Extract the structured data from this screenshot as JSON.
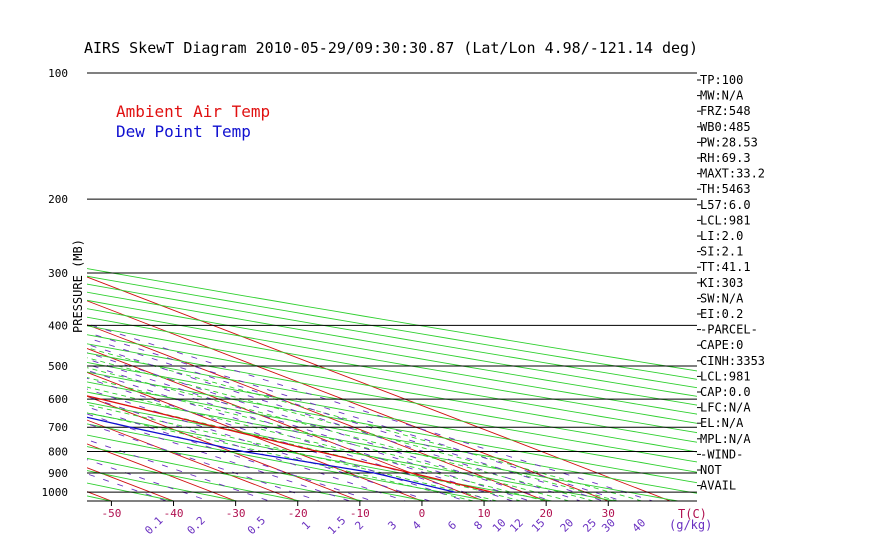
{
  "chart_data": {
    "type": "line",
    "title": "AIRS SkewT Diagram 2010-05-29/09:30:30.87 (Lat/Lon 4.98/-121.14 deg)",
    "ylabel": "PRESSURE (MB)",
    "x_unit_label": "T(C)",
    "mixing_ratio_unit_label": "(g/kg)",
    "y_scale": "log",
    "ylim": [
      1050,
      100
    ],
    "bottom_temp_range": [
      -52,
      24
    ],
    "pressure_ticks": [
      100,
      200,
      300,
      400,
      500,
      600,
      700,
      800,
      900,
      1000
    ],
    "bottom_temp_ticks": [
      -50,
      -40,
      -30,
      -20,
      -10,
      0,
      10,
      20,
      30
    ],
    "top_temp_ticks": [
      -120,
      -110,
      -100,
      -90,
      -80,
      -70,
      -60,
      -50,
      -40
    ],
    "mixing_ratio_labels": [
      "0.1",
      "0.2",
      "0.5",
      "1",
      "1.5",
      "2",
      "3",
      "4",
      "6",
      "8",
      "10",
      "12",
      "15",
      "20",
      "25",
      "30",
      "40"
    ],
    "mixing_ratio_values": [
      0.1,
      0.2,
      0.5,
      1,
      1.5,
      2,
      3,
      4,
      6,
      8,
      10,
      12,
      15,
      20,
      25,
      30,
      40
    ],
    "dry_adiabats_theta_K": [
      200,
      210,
      220,
      230,
      240,
      250,
      260,
      270,
      280,
      290,
      300,
      310,
      320,
      330,
      340,
      350,
      360,
      370,
      380,
      390,
      400,
      410,
      420,
      430,
      440,
      450
    ],
    "moist_adiabats_thetaw_C": [
      6,
      10,
      14,
      18,
      22,
      26,
      30,
      34
    ],
    "legend": [
      {
        "label": "Ambient Air Temp",
        "color": "#e01010"
      },
      {
        "label": "Dew Point Temp",
        "color": "#1010d0"
      }
    ],
    "series": [
      {
        "name": "Ambient Air Temp",
        "color": "#e01010",
        "points": [
          [
            100,
            -83
          ],
          [
            140,
            -80
          ],
          [
            160,
            -78
          ],
          [
            200,
            -68
          ],
          [
            250,
            -56
          ],
          [
            300,
            -46
          ],
          [
            400,
            -30
          ],
          [
            500,
            -18
          ],
          [
            600,
            -9
          ],
          [
            700,
            -2
          ],
          [
            800,
            4
          ],
          [
            900,
            10
          ],
          [
            1000,
            15
          ]
        ]
      },
      {
        "name": "Dew Point Temp",
        "color": "#1010d0",
        "points": [
          [
            100,
            -90
          ],
          [
            150,
            -88
          ],
          [
            200,
            -84
          ],
          [
            250,
            -74
          ],
          [
            300,
            -63
          ],
          [
            400,
            -46
          ],
          [
            500,
            -34
          ],
          [
            600,
            -24
          ],
          [
            700,
            -16
          ],
          [
            800,
            -8
          ],
          [
            900,
            4
          ],
          [
            1000,
            9
          ]
        ]
      }
    ],
    "indices": [
      "TP:100",
      "MW:N/A",
      "FRZ:548",
      "WB0:485",
      "PW:28.53",
      "RH:69.3",
      "MAXT:33.2",
      "TH:5463",
      "L57:6.0",
      "LCL:981",
      "LI:2.0",
      "SI:2.1",
      "TT:41.1",
      "KI:303",
      "SW:N/A",
      "EI:0.2",
      "-PARCEL-",
      "CAPE:0",
      "CINH:3353",
      "LCL:981",
      "CAP:0.0",
      "LFC:N/A",
      "EL:N/A",
      "MPL:N/A",
      "-WIND-",
      "NOT",
      "AVAIL"
    ]
  },
  "colors": {
    "isotherm": "#d01010",
    "dry_adiabat": "#30d030",
    "moist_adiabat": "#30d030",
    "mixing_ratio": "#6a30c0",
    "isobar": "#000000",
    "text": "#000000",
    "bottom_tick_label": "#b01050",
    "mixing_label": "#6a30c0"
  }
}
